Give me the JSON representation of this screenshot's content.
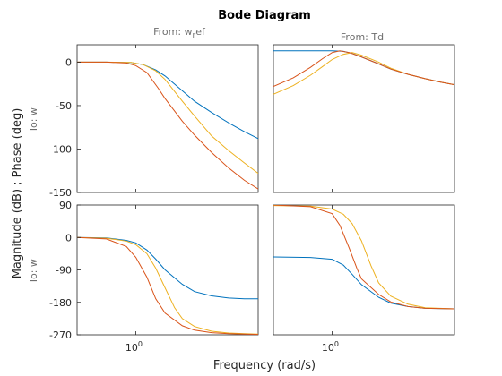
{
  "chart_data": {
    "type": "line",
    "title": "Bode Diagram",
    "xlabel": "Frequency  (rad/s)",
    "ylabel": "Magnitude (dB) ; Phase (deg)",
    "x_scale": "log",
    "xlim": [
      0.25,
      18
    ],
    "x_tick_label": "10",
    "x_tick_exp": "0",
    "column_titles": [
      {
        "text": "From: w",
        "sub": "r",
        "rest": "ef"
      },
      {
        "text": "From: Td",
        "sub": "",
        "rest": ""
      }
    ],
    "row_label": "To: w",
    "colors": {
      "blue": "#0072BD",
      "orange": "#D95319",
      "yellow": "#EDB120"
    },
    "panels": [
      {
        "id": "mag-from-wref",
        "row": "magnitude",
        "col": 0,
        "ylim": [
          -150,
          20
        ],
        "yticks": [
          0,
          -50,
          -100,
          -150
        ],
        "series": [
          {
            "color": "#0072BD",
            "points": [
              [
                0.25,
                0
              ],
              [
                0.5,
                0
              ],
              [
                0.9,
                -0.5
              ],
              [
                1.2,
                -3
              ],
              [
                1.6,
                -9
              ],
              [
                2,
                -16
              ],
              [
                3,
                -33
              ],
              [
                4,
                -45
              ],
              [
                6,
                -58
              ],
              [
                9,
                -70
              ],
              [
                13,
                -80
              ],
              [
                18,
                -88
              ]
            ]
          },
          {
            "color": "#EDB120",
            "points": [
              [
                0.25,
                0
              ],
              [
                0.5,
                0
              ],
              [
                0.9,
                -0.3
              ],
              [
                1.2,
                -3
              ],
              [
                1.6,
                -10
              ],
              [
                2,
                -20
              ],
              [
                3,
                -45
              ],
              [
                4,
                -62
              ],
              [
                6,
                -85
              ],
              [
                9,
                -102
              ],
              [
                13,
                -116
              ],
              [
                18,
                -128
              ]
            ]
          },
          {
            "color": "#D95319",
            "points": [
              [
                0.25,
                0
              ],
              [
                0.5,
                0
              ],
              [
                0.8,
                -1
              ],
              [
                1,
                -4
              ],
              [
                1.3,
                -12
              ],
              [
                1.7,
                -30
              ],
              [
                2,
                -42
              ],
              [
                3,
                -68
              ],
              [
                4,
                -84
              ],
              [
                6,
                -104
              ],
              [
                9,
                -122
              ],
              [
                13,
                -136
              ],
              [
                18,
                -146
              ]
            ]
          }
        ]
      },
      {
        "id": "mag-from-td",
        "row": "magnitude",
        "col": 1,
        "ylim": [
          -150,
          20
        ],
        "yticks": [
          0,
          -50,
          -100,
          -150
        ],
        "series": [
          {
            "color": "#0072BD",
            "points": [
              [
                0.25,
                13
              ],
              [
                0.6,
                13
              ],
              [
                1,
                13
              ],
              [
                1.3,
                12.5
              ],
              [
                1.6,
                10
              ],
              [
                2,
                6
              ],
              [
                3,
                -2
              ],
              [
                4,
                -8
              ],
              [
                6,
                -14
              ],
              [
                9,
                -19
              ],
              [
                13,
                -23
              ],
              [
                18,
                -26
              ]
            ]
          },
          {
            "color": "#EDB120",
            "points": [
              [
                0.25,
                -37
              ],
              [
                0.4,
                -27
              ],
              [
                0.6,
                -15
              ],
              [
                0.8,
                -5
              ],
              [
                1,
                3
              ],
              [
                1.3,
                9
              ],
              [
                1.6,
                11
              ],
              [
                2,
                8
              ],
              [
                3,
                0
              ],
              [
                4,
                -7
              ],
              [
                6,
                -14
              ],
              [
                9,
                -19
              ],
              [
                13,
                -23
              ],
              [
                18,
                -26
              ]
            ]
          },
          {
            "color": "#D95319",
            "points": [
              [
                0.25,
                -28
              ],
              [
                0.4,
                -18
              ],
              [
                0.6,
                -6
              ],
              [
                0.8,
                4
              ],
              [
                1,
                11
              ],
              [
                1.2,
                13
              ],
              [
                1.5,
                11
              ],
              [
                2,
                6
              ],
              [
                3,
                -2
              ],
              [
                4,
                -8
              ],
              [
                6,
                -14
              ],
              [
                9,
                -19
              ],
              [
                13,
                -23
              ],
              [
                18,
                -26
              ]
            ]
          }
        ]
      },
      {
        "id": "phase-from-wref",
        "row": "phase",
        "col": 0,
        "ylim": [
          -270,
          90
        ],
        "yticks": [
          90,
          0,
          -90,
          -180,
          -270
        ],
        "series": [
          {
            "color": "#0072BD",
            "points": [
              [
                0.25,
                0
              ],
              [
                0.5,
                -1
              ],
              [
                0.8,
                -8
              ],
              [
                1,
                -15
              ],
              [
                1.3,
                -35
              ],
              [
                1.6,
                -60
              ],
              [
                2,
                -90
              ],
              [
                3,
                -130
              ],
              [
                4,
                -150
              ],
              [
                6,
                -162
              ],
              [
                9,
                -168
              ],
              [
                13,
                -170
              ],
              [
                18,
                -170
              ]
            ]
          },
          {
            "color": "#EDB120",
            "points": [
              [
                0.25,
                0
              ],
              [
                0.5,
                -2
              ],
              [
                0.8,
                -10
              ],
              [
                1,
                -20
              ],
              [
                1.3,
                -45
              ],
              [
                1.6,
                -85
              ],
              [
                2,
                -140
              ],
              [
                2.5,
                -195
              ],
              [
                3,
                -225
              ],
              [
                4,
                -247
              ],
              [
                6,
                -260
              ],
              [
                9,
                -265
              ],
              [
                13,
                -267
              ],
              [
                18,
                -268
              ]
            ]
          },
          {
            "color": "#D95319",
            "points": [
              [
                0.25,
                0
              ],
              [
                0.5,
                -4
              ],
              [
                0.8,
                -25
              ],
              [
                1,
                -55
              ],
              [
                1.3,
                -110
              ],
              [
                1.6,
                -170
              ],
              [
                2,
                -210
              ],
              [
                3,
                -245
              ],
              [
                4,
                -257
              ],
              [
                6,
                -264
              ],
              [
                9,
                -267
              ],
              [
                13,
                -268
              ],
              [
                18,
                -269
              ]
            ]
          }
        ]
      },
      {
        "id": "phase-from-td",
        "row": "phase",
        "col": 1,
        "ylim": [
          -135,
          90
        ],
        "yticks": [],
        "series": [
          {
            "color": "#0072BD",
            "points": [
              [
                0.25,
                0
              ],
              [
                0.6,
                -1
              ],
              [
                1,
                -4
              ],
              [
                1.3,
                -14
              ],
              [
                1.6,
                -30
              ],
              [
                2,
                -48
              ],
              [
                3,
                -70
              ],
              [
                4,
                -80
              ],
              [
                6,
                -86
              ],
              [
                9,
                -89
              ],
              [
                18,
                -90
              ]
            ]
          },
          {
            "color": "#EDB120",
            "points": [
              [
                0.25,
                89
              ],
              [
                0.6,
                88
              ],
              [
                1,
                83
              ],
              [
                1.3,
                74
              ],
              [
                1.6,
                58
              ],
              [
                2,
                28
              ],
              [
                2.5,
                -15
              ],
              [
                3,
                -45
              ],
              [
                4,
                -68
              ],
              [
                6,
                -82
              ],
              [
                9,
                -88
              ],
              [
                18,
                -90
              ]
            ]
          },
          {
            "color": "#D95319",
            "points": [
              [
                0.25,
                90
              ],
              [
                0.6,
                87
              ],
              [
                1,
                75
              ],
              [
                1.2,
                55
              ],
              [
                1.5,
                15
              ],
              [
                1.8,
                -20
              ],
              [
                2,
                -38
              ],
              [
                3,
                -65
              ],
              [
                4,
                -78
              ],
              [
                6,
                -86
              ],
              [
                9,
                -89
              ],
              [
                18,
                -90
              ]
            ]
          }
        ]
      }
    ]
  }
}
